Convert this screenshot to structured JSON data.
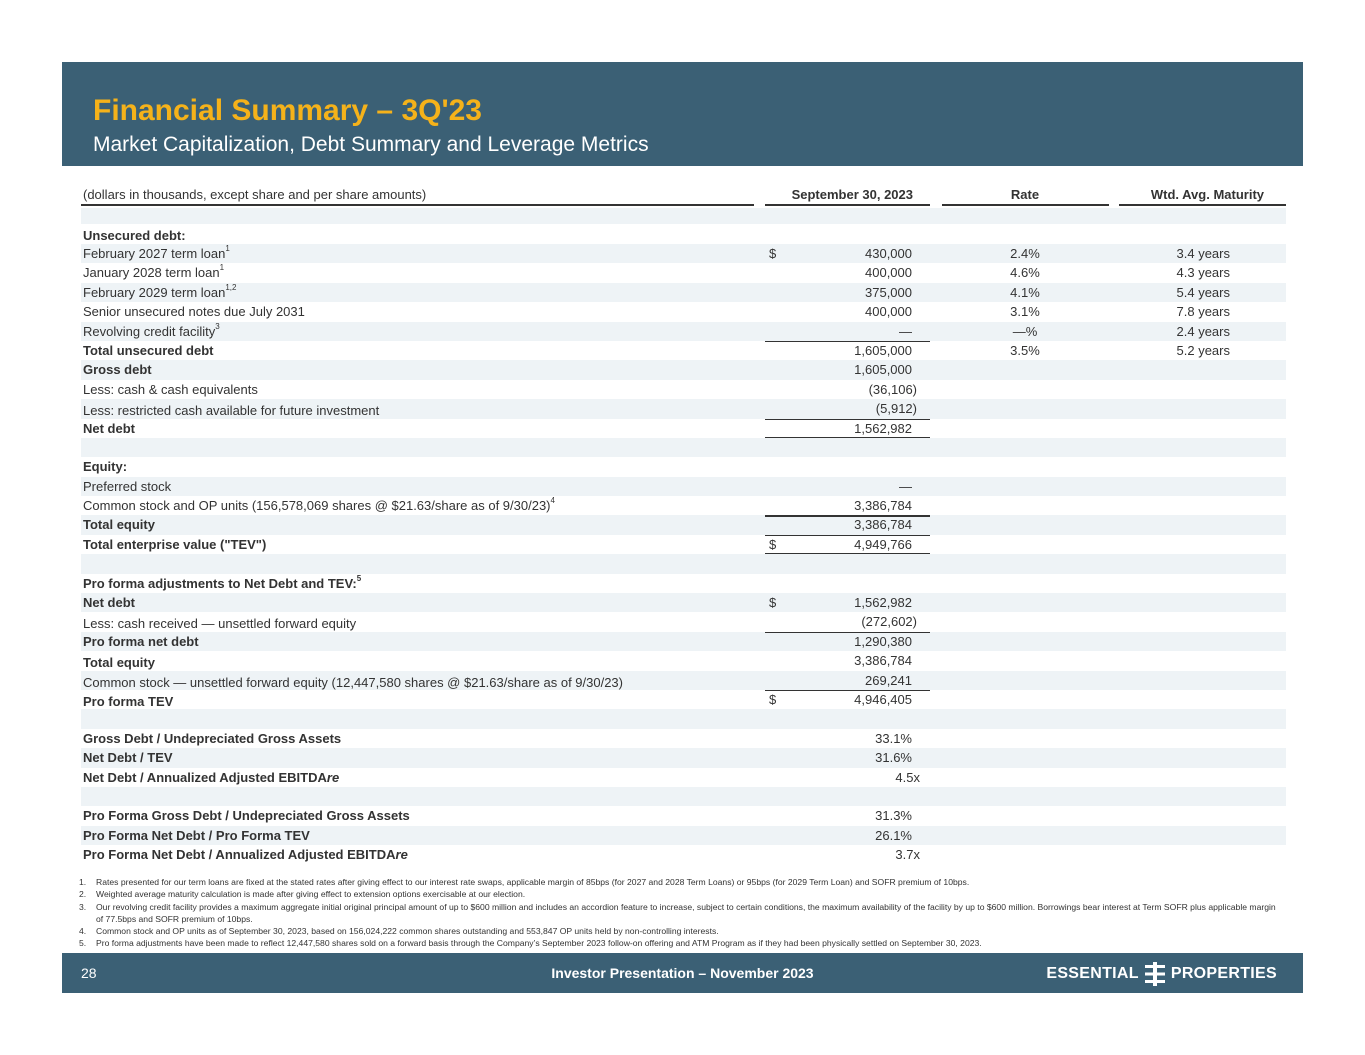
{
  "header": {
    "title": "Financial Summary – 3Q'23",
    "subtitle": "Market Capitalization, Debt Summary and Leverage Metrics"
  },
  "table": {
    "columns": {
      "label": "(dollars in thousands, except share and per share amounts)",
      "amount": "September 30, 2023",
      "rate": "Rate",
      "maturity": "Wtd. Avg. Maturity"
    },
    "sections": {
      "unsecured_heading": "Unsecured debt:",
      "equity_heading": "Equity:",
      "pro_forma_heading": "Pro forma adjustments to Net Debt and TEV:",
      "pro_forma_heading_sup": "5"
    },
    "rows": {
      "feb2027": {
        "label": "February 2027 term loan",
        "sup": "1",
        "dollar": "$",
        "amount": "430,000",
        "rate": "2.4%",
        "maturity": "3.4 years"
      },
      "jan2028": {
        "label": "January 2028 term loan",
        "sup": "1",
        "amount": "400,000",
        "rate": "4.6%",
        "maturity": "4.3 years"
      },
      "feb2029": {
        "label": "February 2029 term loan",
        "sup": "1,2",
        "amount": "375,000",
        "rate": "4.1%",
        "maturity": "5.4 years"
      },
      "senior": {
        "label": "Senior unsecured notes due July 2031",
        "amount": "400,000",
        "rate": "3.1%",
        "maturity": "7.8 years"
      },
      "revolver": {
        "label": "Revolving credit facility",
        "sup": "3",
        "amount": "—",
        "rate": "—%",
        "maturity": "2.4 years"
      },
      "total_unsecured": {
        "label": "Total unsecured debt",
        "amount": "1,605,000",
        "rate": "3.5%",
        "maturity": "5.2 years"
      },
      "gross_debt": {
        "label": "Gross debt",
        "amount": "1,605,000"
      },
      "less_cash": {
        "label": "Less: cash & cash equivalents",
        "amount": "(36,106)"
      },
      "less_restricted": {
        "label": "Less: restricted cash available for future investment",
        "amount": "(5,912)"
      },
      "net_debt": {
        "label": "Net debt",
        "amount": "1,562,982"
      },
      "preferred": {
        "label": "Preferred stock",
        "amount": "—"
      },
      "common": {
        "label": "Common stock and OP units (156,578,069 shares @ $21.63/share as of 9/30/23)",
        "sup": "4",
        "amount": "3,386,784"
      },
      "total_equity": {
        "label": "Total equity",
        "amount": "3,386,784"
      },
      "tev": {
        "label": "Total enterprise value (\"TEV\")",
        "dollar": "$",
        "amount": "4,949,766"
      },
      "pf_net_debt": {
        "label": "Net debt",
        "dollar": "$",
        "amount": "1,562,982"
      },
      "pf_less_cash": {
        "label": "Less: cash received — unsettled forward equity",
        "amount": "(272,602)"
      },
      "pf_net_debt_total": {
        "label": "Pro forma net debt",
        "amount": "1,290,380"
      },
      "pf_total_equity": {
        "label": "Total equity",
        "amount": "3,386,784"
      },
      "pf_common": {
        "label": "Common stock — unsettled forward equity (12,447,580 shares @ $21.63/share as of 9/30/23)",
        "amount": "269,241"
      },
      "pf_tev": {
        "label": "Pro forma TEV",
        "dollar": "$",
        "amount": "4,946,405"
      },
      "ratio1": {
        "label": "Gross Debt / Undepreciated Gross Assets",
        "amount": "33.1%"
      },
      "ratio2": {
        "label": "Net Debt / TEV",
        "amount": "31.6%"
      },
      "ratio3": {
        "label": "Net Debt / Annualized Adjusted EBITDA",
        "label_italic": "re",
        "amount": "4.5x"
      },
      "ratio4": {
        "label": "Pro Forma Gross Debt / Undepreciated Gross Assets",
        "amount": "31.3%"
      },
      "ratio5": {
        "label": "Pro Forma Net Debt / Pro Forma TEV",
        "amount": "26.1%"
      },
      "ratio6": {
        "label": "Pro Forma Net Debt / Annualized Adjusted EBITDA",
        "label_italic": "re",
        "amount": "3.7x"
      }
    }
  },
  "footnotes": [
    {
      "n": "1.",
      "text": "Rates presented for our term loans are fixed at the stated rates after giving effect to our interest rate swaps, applicable margin of 85bps (for 2027 and 2028 Term Loans) or 95bps (for 2029 Term Loan) and SOFR premium of 10bps."
    },
    {
      "n": "2.",
      "text": "Weighted average maturity calculation is made after giving effect to extension options exercisable at our election."
    },
    {
      "n": "3.",
      "text": "Our revolving credit facility provides a maximum aggregate initial original principal amount of up to $600 million and includes an accordion feature to increase, subject to certain conditions, the maximum availability of the facility by up to $600 million. Borrowings bear interest at Term SOFR plus applicable margin of 77.5bps and SOFR premium of 10bps."
    },
    {
      "n": "4.",
      "text": "Common stock and OP units as of September 30, 2023, based on 156,024,222 common shares outstanding and 553,847 OP units held by non-controlling interests."
    },
    {
      "n": "5.",
      "text": "Pro forma adjustments have been made to reflect 12,447,580 shares sold on a forward basis through the Company’s September 2023 follow-on offering and ATM Program as if they had been physically settled on September 30, 2023."
    }
  ],
  "footer": {
    "page_number": "28",
    "presentation": "Investor Presentation – November 2023",
    "logo_left": "ESSENTIAL",
    "logo_right": "PROPERTIES"
  },
  "colors": {
    "header_bg": "#3b6075",
    "title": "#f5b21a",
    "row_shade": "#eef3f6"
  }
}
